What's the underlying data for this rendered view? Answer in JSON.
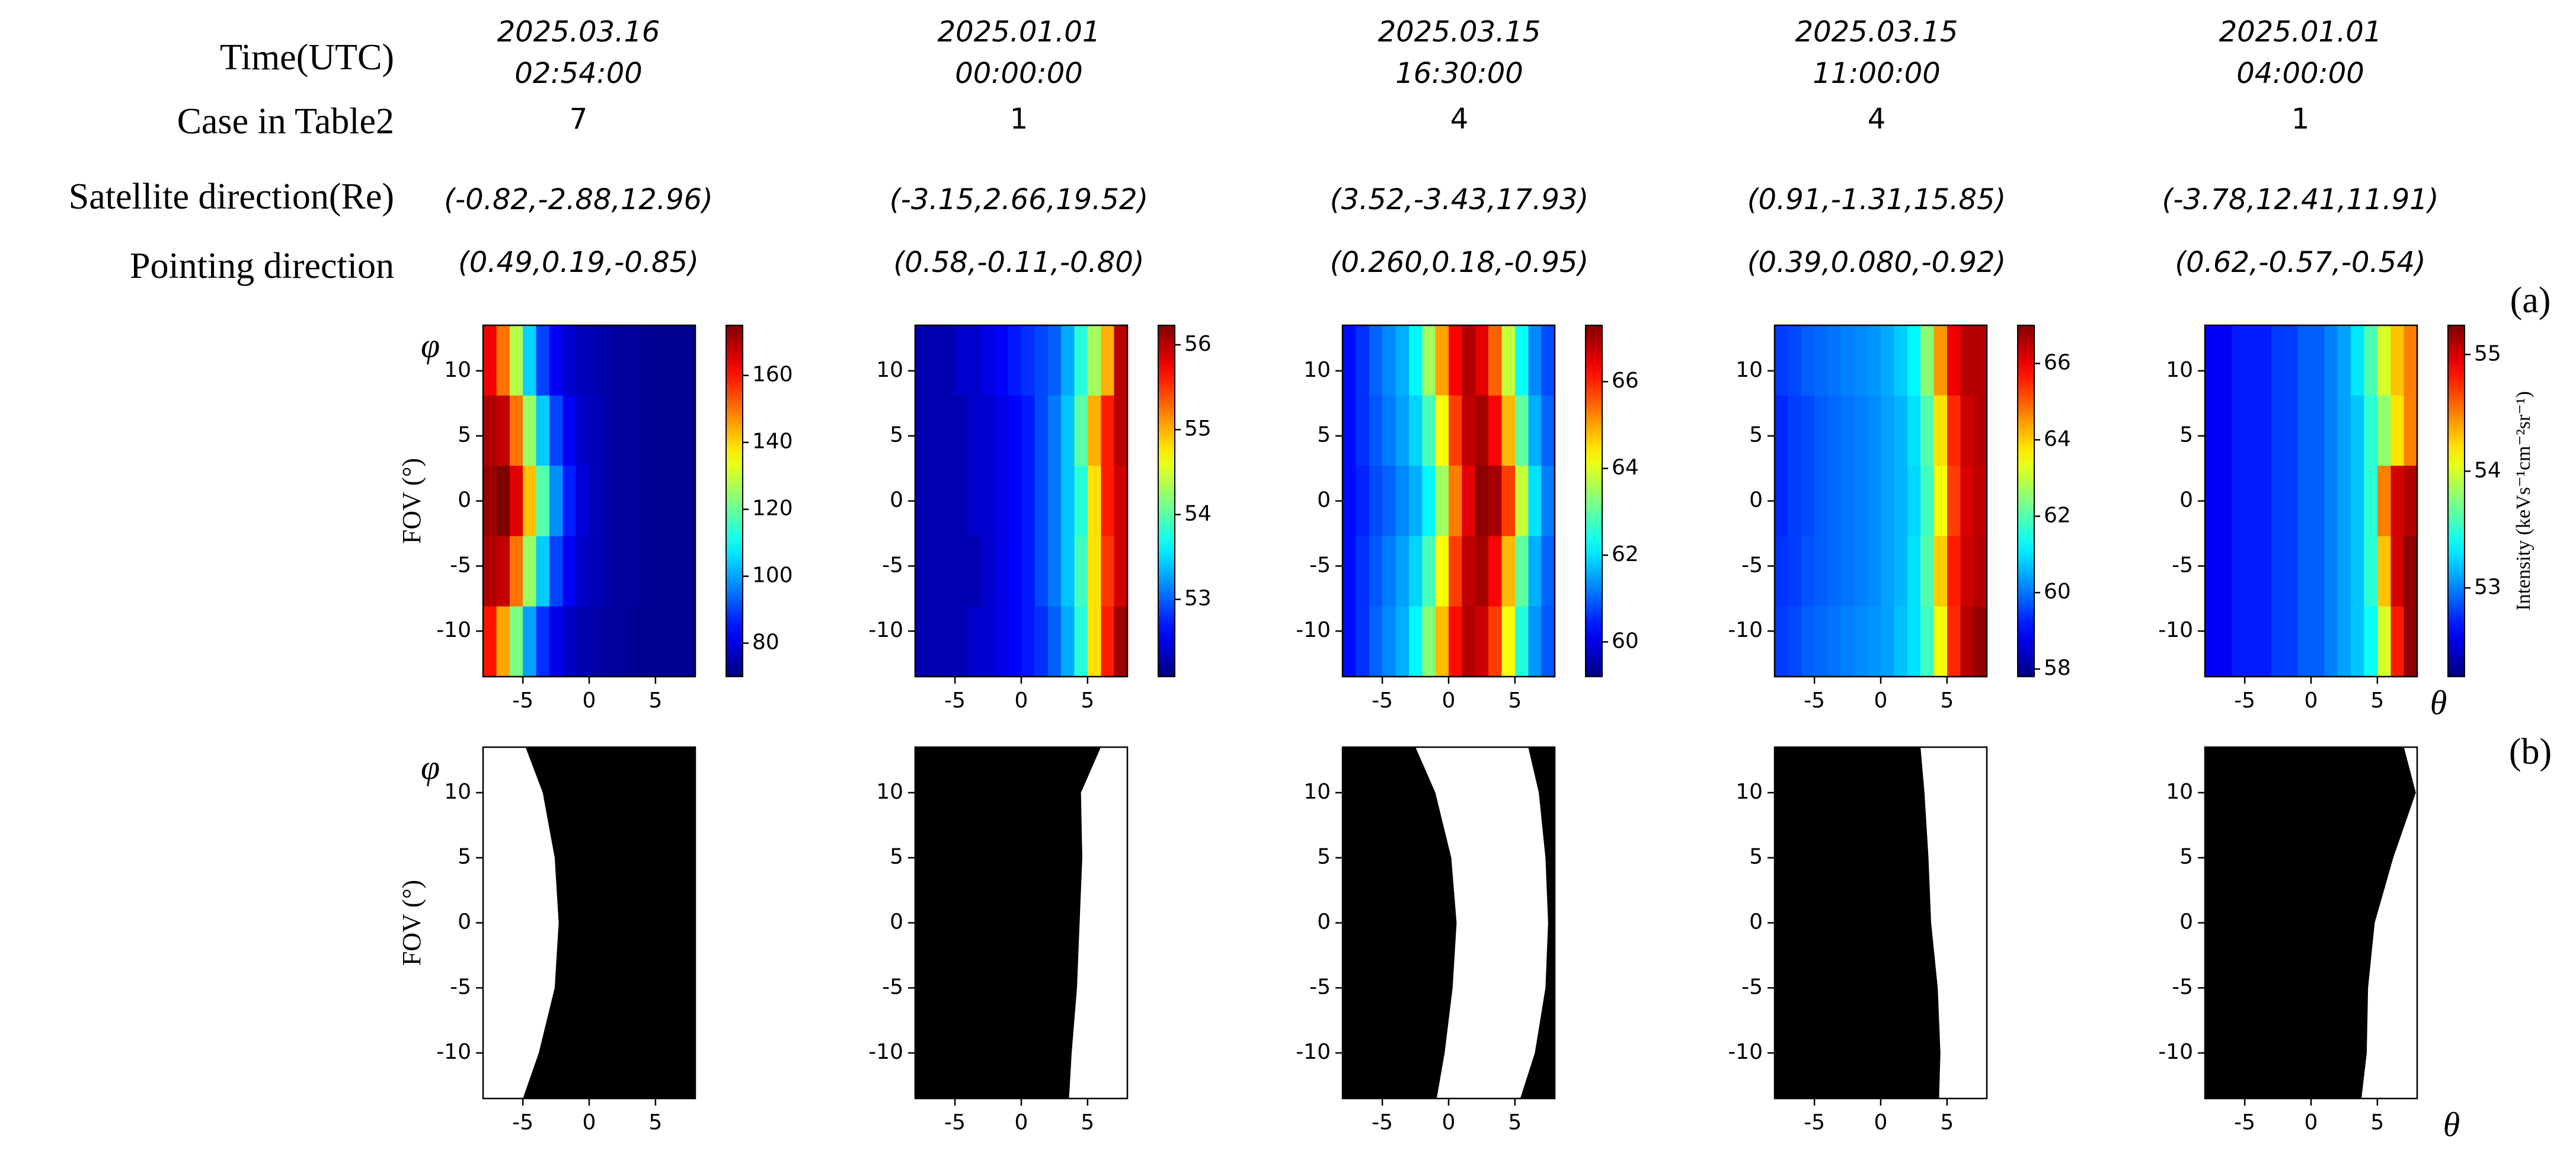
{
  "header": {
    "row_labels": [
      "Time(UTC)",
      "Case in Table2",
      "Satellite direction(Re)",
      "Pointing direction"
    ],
    "columns": [
      {
        "time": [
          "2025.03.16",
          "02:54:00"
        ],
        "case": 7,
        "satellite": "(-0.82,-2.88,12.96)",
        "pointing": "(0.49,0.19,-0.85)"
      },
      {
        "time": [
          "2025.01.01",
          "00:00:00"
        ],
        "case": 1,
        "satellite": "(-3.15,2.66,19.52)",
        "pointing": "(0.58,-0.11,-0.80)"
      },
      {
        "time": [
          "2025.03.15",
          "16:30:00"
        ],
        "case": 4,
        "satellite": "(3.52,-3.43,17.93)",
        "pointing": "(0.260,0.18,-0.95)"
      },
      {
        "time": [
          "2025.03.15",
          "11:00:00"
        ],
        "case": 4,
        "satellite": "(0.91,-1.31,15.85)",
        "pointing": "(0.39,0.080,-0.92)"
      },
      {
        "time": [
          "2025.01.01",
          "04:00:00"
        ],
        "case": 1,
        "satellite": "(-3.78,12.41,11.91)",
        "pointing": "(0.62,-0.57,-0.54)"
      }
    ]
  },
  "panel_labels": [
    "(a)",
    "(b)"
  ],
  "chart_data": [
    {
      "type": "heatmap",
      "colormap": "jet",
      "ylabel_symbol": "φ",
      "ylabel": "FOV (°)",
      "x": [
        -7.5,
        -6.5,
        -5.5,
        -4.5,
        -3.5,
        -2.5,
        -1.5,
        -0.5,
        0.5,
        1.5,
        2.5,
        3.5,
        4.5,
        5.5,
        6.5,
        7.5
      ],
      "y": [
        10.8,
        5.4,
        0,
        -5.4,
        -10.8
      ],
      "values": [
        [
          163,
          150,
          128,
          105,
          90,
          82,
          78,
          76,
          75,
          74,
          73,
          73,
          72,
          72,
          72,
          72
        ],
        [
          170,
          168,
          150,
          125,
          104,
          90,
          82,
          78,
          76,
          74,
          73,
          73,
          72,
          72,
          72,
          72
        ],
        [
          172,
          175,
          165,
          142,
          118,
          98,
          86,
          79,
          76,
          74,
          73,
          73,
          72,
          72,
          72,
          72
        ],
        [
          170,
          168,
          150,
          125,
          104,
          90,
          82,
          78,
          76,
          74,
          73,
          73,
          72,
          72,
          72,
          72
        ],
        [
          160,
          145,
          122,
          100,
          88,
          81,
          77,
          75,
          74,
          73,
          73,
          72,
          72,
          72,
          72,
          72
        ]
      ],
      "xlim": [
        -8,
        8
      ],
      "ylim": [
        -13.5,
        13.5
      ],
      "xticks": [
        -5,
        0,
        5
      ],
      "yticks": [
        -10,
        -5,
        0,
        5,
        10
      ],
      "clim": [
        70,
        175
      ],
      "cticks": [
        80,
        100,
        120,
        140,
        160
      ]
    },
    {
      "type": "heatmap",
      "colormap": "jet",
      "x": [
        -7.5,
        -6.5,
        -5.5,
        -4.5,
        -3.5,
        -2.5,
        -1.5,
        -0.5,
        0.5,
        1.5,
        2.5,
        3.5,
        4.5,
        5.5,
        6.5,
        7.5
      ],
      "y": [
        10.8,
        5.4,
        0,
        -5.4,
        -10.8
      ],
      "values": [
        [
          52.3,
          52.3,
          52.3,
          52.4,
          52.4,
          52.5,
          52.6,
          52.7,
          52.8,
          52.9,
          53.0,
          53.3,
          53.8,
          54.3,
          55.0,
          56.0
        ],
        [
          52.3,
          52.3,
          52.3,
          52.3,
          52.4,
          52.4,
          52.5,
          52.6,
          52.7,
          52.9,
          53.1,
          53.4,
          54.0,
          55.0,
          55.6,
          56.0
        ],
        [
          52.3,
          52.3,
          52.3,
          52.3,
          52.4,
          52.4,
          52.5,
          52.6,
          52.7,
          52.9,
          53.1,
          53.4,
          53.8,
          54.8,
          55.6,
          55.9
        ],
        [
          52.3,
          52.3,
          52.3,
          52.3,
          52.3,
          52.4,
          52.5,
          52.6,
          52.7,
          52.9,
          53.1,
          53.4,
          53.9,
          54.8,
          55.5,
          55.9
        ],
        [
          52.3,
          52.3,
          52.3,
          52.3,
          52.4,
          52.4,
          52.5,
          52.6,
          52.7,
          52.8,
          53.0,
          53.3,
          53.8,
          54.8,
          55.6,
          56.1
        ]
      ],
      "xlim": [
        -8,
        8
      ],
      "ylim": [
        -13.5,
        13.5
      ],
      "xticks": [
        -5,
        0,
        5
      ],
      "yticks": [
        -10,
        -5,
        0,
        5,
        10
      ],
      "clim": [
        52.09,
        56.23
      ],
      "cticks": [
        53,
        54,
        55,
        56
      ]
    },
    {
      "type": "heatmap",
      "colormap": "jet",
      "x": [
        -7.5,
        -6.5,
        -5.5,
        -4.5,
        -3.5,
        -2.5,
        -1.5,
        -0.5,
        0.5,
        1.5,
        2.5,
        3.5,
        4.5,
        5.5,
        6.5,
        7.5
      ],
      "y": [
        10.8,
        5.4,
        0,
        -5.4,
        -10.8
      ],
      "values": [
        [
          60.3,
          60.6,
          61.0,
          61.3,
          61.6,
          62.2,
          63.5,
          65.0,
          66.3,
          66.9,
          66.5,
          65.5,
          63.8,
          62.3,
          61.3,
          60.8
        ],
        [
          60.3,
          60.6,
          60.9,
          61.2,
          61.5,
          61.9,
          62.8,
          64.2,
          65.8,
          66.8,
          67.0,
          66.3,
          64.8,
          63.0,
          61.6,
          61.0
        ],
        [
          60.3,
          60.5,
          60.8,
          61.0,
          61.3,
          61.6,
          62.2,
          63.5,
          65.3,
          66.5,
          67.2,
          67.0,
          65.8,
          63.8,
          62.0,
          61.2
        ],
        [
          60.3,
          60.6,
          60.9,
          61.2,
          61.5,
          61.9,
          62.8,
          64.2,
          65.8,
          66.8,
          67.0,
          66.3,
          64.8,
          63.0,
          61.6,
          61.0
        ],
        [
          60.3,
          60.6,
          61.0,
          61.3,
          61.6,
          62.2,
          63.3,
          64.8,
          66.2,
          66.9,
          66.7,
          65.8,
          64.2,
          62.5,
          61.4,
          60.9
        ]
      ],
      "xlim": [
        -8,
        8
      ],
      "ylim": [
        -13.5,
        13.5
      ],
      "xticks": [
        -5,
        0,
        5
      ],
      "yticks": [
        -10,
        -5,
        0,
        5,
        10
      ],
      "clim": [
        59.2,
        67.3
      ],
      "cticks": [
        60,
        62,
        64,
        66
      ]
    },
    {
      "type": "heatmap",
      "colormap": "jet",
      "x": [
        -7.5,
        -6.5,
        -5.5,
        -4.5,
        -3.5,
        -2.5,
        -1.5,
        -0.5,
        0.5,
        1.5,
        2.5,
        3.5,
        4.5,
        5.5,
        6.5,
        7.5
      ],
      "y": [
        10.8,
        5.4,
        0,
        -5.4,
        -10.8
      ],
      "values": [
        [
          59.5,
          59.6,
          59.8,
          59.9,
          60.0,
          60.1,
          60.2,
          60.3,
          60.5,
          60.8,
          61.2,
          62.5,
          64.5,
          66.0,
          66.5,
          66.5
        ],
        [
          59.3,
          59.5,
          59.6,
          59.8,
          59.9,
          60.0,
          60.1,
          60.2,
          60.4,
          60.6,
          61.0,
          62.0,
          63.8,
          65.5,
          66.3,
          66.5
        ],
        [
          59.3,
          59.5,
          59.6,
          59.8,
          59.9,
          60.0,
          60.1,
          60.2,
          60.4,
          60.6,
          60.9,
          61.8,
          63.5,
          65.3,
          66.2,
          66.4
        ],
        [
          59.4,
          59.5,
          59.7,
          59.8,
          59.9,
          60.0,
          60.1,
          60.2,
          60.4,
          60.6,
          61.0,
          62.0,
          64.0,
          65.6,
          66.3,
          66.5
        ],
        [
          59.5,
          59.6,
          59.8,
          59.9,
          60.0,
          60.1,
          60.2,
          60.3,
          60.4,
          60.7,
          61.0,
          61.8,
          63.5,
          65.5,
          66.5,
          66.8
        ]
      ],
      "xlim": [
        -8,
        8
      ],
      "ylim": [
        -13.5,
        13.5
      ],
      "xticks": [
        -5,
        0,
        5
      ],
      "yticks": [
        -10,
        -5,
        0,
        5,
        10
      ],
      "clim": [
        57.8,
        67.0
      ],
      "cticks": [
        58,
        60,
        62,
        64,
        66
      ]
    },
    {
      "type": "heatmap",
      "colormap": "jet",
      "xlabel": "θ",
      "clabel": "Intensity (keVs⁻¹cm⁻²sr⁻¹)",
      "x": [
        -7.5,
        -6.5,
        -5.5,
        -4.5,
        -3.5,
        -2.5,
        -1.5,
        -0.5,
        0.5,
        1.5,
        2.5,
        3.5,
        4.5,
        5.5,
        6.5,
        7.5
      ],
      "y": [
        10.8,
        5.4,
        0,
        -5.4,
        -10.8
      ],
      "values": [
        [
          52.6,
          52.6,
          52.7,
          52.7,
          52.7,
          52.8,
          52.8,
          52.9,
          52.9,
          53.0,
          53.1,
          53.3,
          53.6,
          54.0,
          54.3,
          54.5
        ],
        [
          52.6,
          52.6,
          52.7,
          52.7,
          52.7,
          52.8,
          52.8,
          52.9,
          52.9,
          53.0,
          53.1,
          53.2,
          53.5,
          53.8,
          54.2,
          54.5
        ],
        [
          52.6,
          52.6,
          52.7,
          52.7,
          52.7,
          52.8,
          52.8,
          52.9,
          52.9,
          53.0,
          53.1,
          53.2,
          53.5,
          54.5,
          55.0,
          55.1
        ],
        [
          52.6,
          52.6,
          52.7,
          52.7,
          52.7,
          52.8,
          52.8,
          52.9,
          52.9,
          53.0,
          53.1,
          53.2,
          53.5,
          54.3,
          55.0,
          55.2
        ],
        [
          52.6,
          52.6,
          52.7,
          52.7,
          52.7,
          52.8,
          52.8,
          52.9,
          52.9,
          53.0,
          53.1,
          53.2,
          53.4,
          54.0,
          54.8,
          55.2
        ]
      ],
      "xlim": [
        -8,
        8
      ],
      "ylim": [
        -13.5,
        13.5
      ],
      "xticks": [
        -5,
        0,
        5
      ],
      "yticks": [
        -10,
        -5,
        0,
        5,
        10
      ],
      "clim": [
        52.24,
        55.25
      ],
      "cticks": [
        53,
        54,
        55
      ]
    },
    {
      "type": "mask",
      "color": "#000000",
      "ylabel_symbol": "φ",
      "ylabel": "FOV (°)",
      "y": [
        13.5,
        10,
        5,
        0,
        -5,
        -10,
        -13.5
      ],
      "white_from": [
        -8,
        -8,
        -8,
        -8,
        -8,
        -8,
        -8
      ],
      "white_to": [
        -4.8,
        -3.5,
        -2.6,
        -2.3,
        -2.6,
        -3.8,
        -5.0
      ],
      "xlim": [
        -8,
        8
      ],
      "ylim": [
        -13.5,
        13.5
      ],
      "xticks": [
        -5,
        0,
        5
      ],
      "yticks": [
        -10,
        -5,
        0,
        5,
        10
      ]
    },
    {
      "type": "mask",
      "color": "#000000",
      "y": [
        13.5,
        10,
        5,
        0,
        -5,
        -10,
        -13.5
      ],
      "white_from": [
        6.0,
        4.5,
        4.6,
        4.4,
        4.2,
        3.8,
        3.6
      ],
      "white_to": [
        8,
        8,
        8,
        8,
        8,
        8,
        8
      ],
      "xlim": [
        -8,
        8
      ],
      "ylim": [
        -13.5,
        13.5
      ],
      "xticks": [
        -5,
        0,
        5
      ],
      "yticks": [
        -10,
        -5,
        0,
        5,
        10
      ]
    },
    {
      "type": "mask",
      "color": "#000000",
      "y": [
        13.5,
        10,
        5,
        0,
        -5,
        -10,
        -13.5
      ],
      "white_from": [
        -2.5,
        -1.0,
        0.2,
        0.6,
        0.3,
        -0.3,
        -0.9
      ],
      "white_to": [
        6.0,
        6.8,
        7.3,
        7.5,
        7.3,
        6.5,
        5.4
      ],
      "xlim": [
        -8,
        8
      ],
      "ylim": [
        -13.5,
        13.5
      ],
      "xticks": [
        -5,
        0,
        5
      ],
      "yticks": [
        -10,
        -5,
        0,
        5,
        10
      ]
    },
    {
      "type": "mask",
      "color": "#000000",
      "y": [
        13.5,
        10,
        5,
        0,
        -5,
        -10,
        -13.5
      ],
      "white_from": [
        3.0,
        3.3,
        3.6,
        3.8,
        4.3,
        4.5,
        4.4
      ],
      "white_to": [
        8,
        8,
        8,
        8,
        8,
        8,
        8
      ],
      "xlim": [
        -8,
        8
      ],
      "ylim": [
        -13.5,
        13.5
      ],
      "xticks": [
        -5,
        0,
        5
      ],
      "yticks": [
        -10,
        -5,
        0,
        5,
        10
      ]
    },
    {
      "type": "mask",
      "color": "#000000",
      "xlabel": "θ",
      "y": [
        13.5,
        10,
        5,
        0,
        -5,
        -10,
        -13.5
      ],
      "white_from": [
        7.0,
        7.9,
        6.2,
        4.8,
        4.3,
        4.2,
        3.8
      ],
      "white_to": [
        8,
        8,
        8,
        8,
        8,
        8,
        8
      ],
      "xlim": [
        -8,
        8
      ],
      "ylim": [
        -13.5,
        13.5
      ],
      "xticks": [
        -5,
        0,
        5
      ],
      "yticks": [
        -10,
        -5,
        0,
        5,
        10
      ]
    }
  ]
}
